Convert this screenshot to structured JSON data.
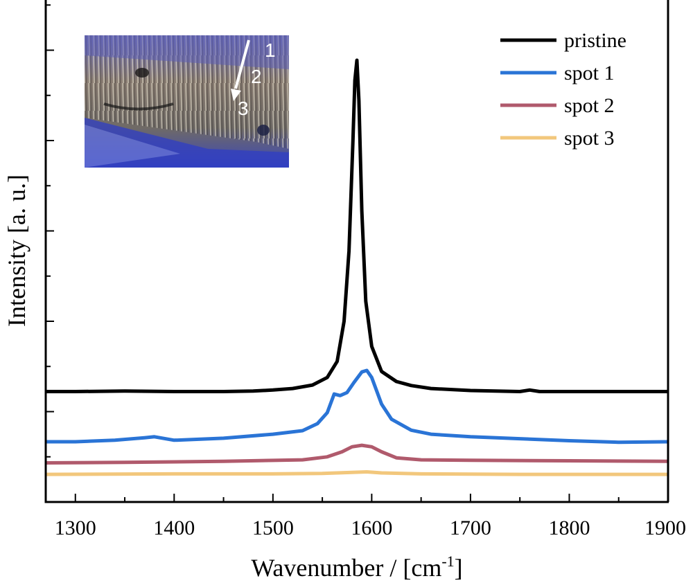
{
  "chart_data": {
    "type": "line",
    "xlabel_main": "Wavenumber / [cm",
    "xlabel_sup": "-1",
    "xlabel_tail": "]",
    "ylabel": "Intensity [a. u.]",
    "xlim": [
      1270,
      1900
    ],
    "x_ticks": [
      1300,
      1400,
      1500,
      1600,
      1700,
      1800,
      1900
    ],
    "y_ticks_labeled": false,
    "ylim": [
      0,
      100
    ],
    "legend_position": "top-right",
    "series": [
      {
        "name": "pristine",
        "color": "#000000",
        "x": [
          1270,
          1300,
          1350,
          1400,
          1450,
          1480,
          1500,
          1520,
          1540,
          1555,
          1565,
          1572,
          1577,
          1581,
          1583,
          1585,
          1587,
          1590,
          1594,
          1600,
          1610,
          1625,
          1640,
          1660,
          1700,
          1750,
          1760,
          1770,
          1800,
          1850,
          1900
        ],
        "y": [
          22.0,
          22.0,
          22.1,
          22.0,
          22.0,
          22.1,
          22.3,
          22.6,
          23.3,
          24.8,
          28,
          36,
          50,
          72,
          84,
          88,
          80,
          58,
          40,
          31,
          26,
          24,
          23.2,
          22.6,
          22.2,
          22.0,
          22.3,
          22.0,
          22.0,
          22.0,
          22.0
        ]
      },
      {
        "name": "spot 1",
        "color": "#2a74d6",
        "x": [
          1270,
          1300,
          1340,
          1370,
          1380,
          1400,
          1450,
          1500,
          1530,
          1545,
          1555,
          1562,
          1568,
          1575,
          1582,
          1590,
          1595,
          1600,
          1610,
          1620,
          1640,
          1660,
          1700,
          1750,
          1800,
          1850,
          1900
        ],
        "y": [
          12.0,
          12.0,
          12.3,
          12.8,
          13.0,
          12.3,
          12.7,
          13.5,
          14.2,
          15.6,
          17.8,
          21.5,
          21.2,
          21.8,
          23.8,
          25.9,
          26.2,
          24.8,
          19.5,
          16.5,
          14.3,
          13.5,
          13.0,
          12.6,
          12.2,
          11.9,
          12.0
        ]
      },
      {
        "name": "spot 2",
        "color": "#b05a6c",
        "x": [
          1270,
          1350,
          1450,
          1530,
          1555,
          1570,
          1580,
          1590,
          1600,
          1610,
          1625,
          1650,
          1700,
          1800,
          1900
        ],
        "y": [
          7.8,
          7.9,
          8.1,
          8.4,
          9.0,
          10.0,
          11.0,
          11.3,
          11.0,
          10.0,
          8.8,
          8.4,
          8.3,
          8.2,
          8.1
        ]
      },
      {
        "name": "spot 3",
        "color": "#f2c77c",
        "x": [
          1270,
          1400,
          1500,
          1550,
          1580,
          1595,
          1610,
          1650,
          1750,
          1900
        ],
        "y": [
          5.5,
          5.6,
          5.6,
          5.7,
          5.9,
          6.0,
          5.8,
          5.6,
          5.5,
          5.5
        ]
      }
    ],
    "inset": {
      "description_labels": [
        "1",
        "2",
        "3"
      ]
    }
  }
}
